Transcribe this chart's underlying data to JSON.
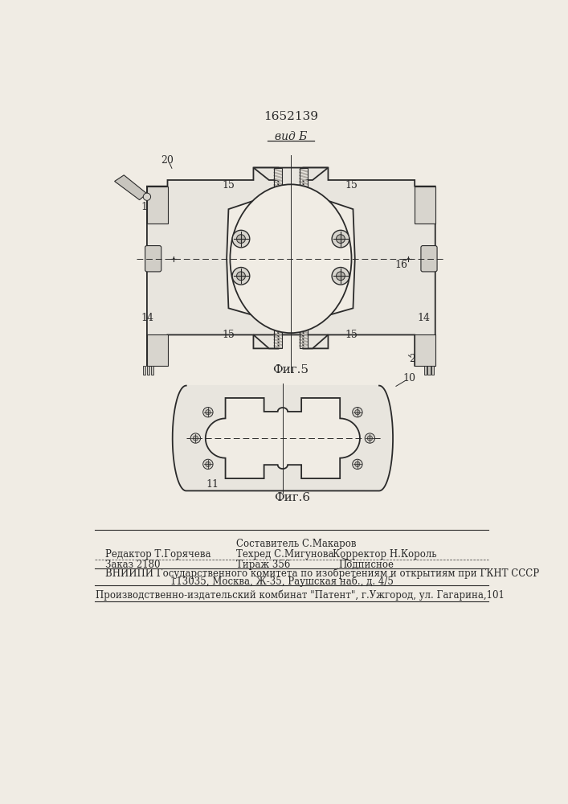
{
  "title": "1652139",
  "fig5_label": "Фиг.5",
  "fig6_label": "Фиг.6",
  "vid_b_label": "вид Б",
  "bg_color": "#f0ece4",
  "line_color": "#2a2a2a",
  "footer_lines": [
    [
      "Составитель С.Макаров",
      265,
      723,
      8.5
    ],
    [
      "Редактор Т.Горячева",
      55,
      739,
      8.5
    ],
    [
      "Техред С.Мигунова",
      265,
      739,
      8.5
    ],
    [
      "Корректор Н.Король",
      420,
      739,
      8.5
    ],
    [
      "Заказ 2180",
      55,
      756,
      8.5
    ],
    [
      "Тираж 356",
      265,
      756,
      8.5
    ],
    [
      "Подписное",
      430,
      756,
      8.5
    ],
    [
      "ВНИИПИ Государственного комитета по изобретениям и открытиям при ГКНТ СССР",
      55,
      770,
      8.5
    ],
    [
      "113035, Москва, Ж-35, Раушская наб., д. 4/5",
      160,
      783,
      8.5
    ],
    [
      "Производственно-издательский комбинат \"Патент\", г.Ужгород, ул. Гагарина,101",
      40,
      805,
      8.5
    ]
  ]
}
